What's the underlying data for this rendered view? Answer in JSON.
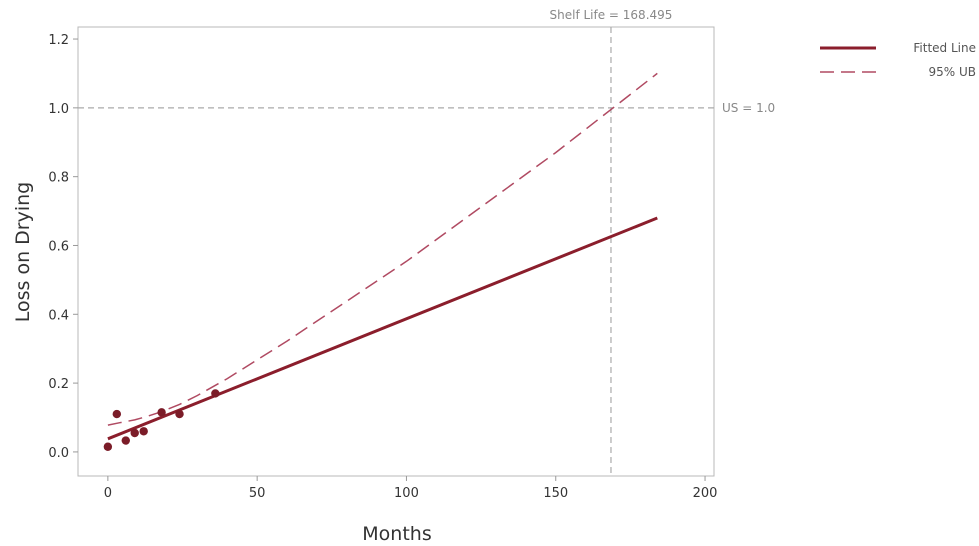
{
  "chart_data": {
    "type": "scatter",
    "xlabel": "Months",
    "ylabel": "Loss on Drying",
    "xlim": [
      -10,
      203
    ],
    "ylim": [
      -0.07,
      1.235
    ],
    "x_ticks": [
      0,
      50,
      100,
      150,
      200
    ],
    "y_ticks": [
      0.0,
      0.2,
      0.4,
      0.6,
      0.8,
      1.0,
      1.2
    ],
    "x_tick_labels": [
      "0",
      "50",
      "100",
      "150",
      "200"
    ],
    "y_tick_labels": [
      "0.0",
      "0.2",
      "0.4",
      "0.6",
      "0.8",
      "1.0",
      "1.2"
    ],
    "grid": false,
    "legend_position": "top-right outside",
    "points": {
      "x": [
        0,
        3,
        6,
        9,
        12,
        18,
        24,
        36
      ],
      "y": [
        0.015,
        0.11,
        0.033,
        0.055,
        0.06,
        0.115,
        0.11,
        0.17
      ],
      "color": "#7b1c28"
    },
    "series": [
      {
        "name": "Fitted Line",
        "style": "solid",
        "color": "#8b1e2c",
        "x": [
          0,
          184
        ],
        "y": [
          0.038,
          0.68
        ]
      },
      {
        "name": "95% UB",
        "style": "dashed",
        "color": "#b04a62",
        "x": [
          0,
          4,
          9,
          13,
          18,
          24,
          30,
          40,
          60,
          100,
          150,
          184
        ],
        "y": [
          0.078,
          0.085,
          0.093,
          0.103,
          0.117,
          0.138,
          0.164,
          0.213,
          0.322,
          0.554,
          0.87,
          1.1
        ]
      }
    ],
    "reference_lines": [
      {
        "axis": "y",
        "value": 1.0,
        "label": "US = 1.0",
        "color": "#aaaaaa"
      },
      {
        "axis": "x",
        "value": 168.495,
        "label": "Shelf Life = 168.495",
        "color": "#aaaaaa"
      }
    ]
  }
}
